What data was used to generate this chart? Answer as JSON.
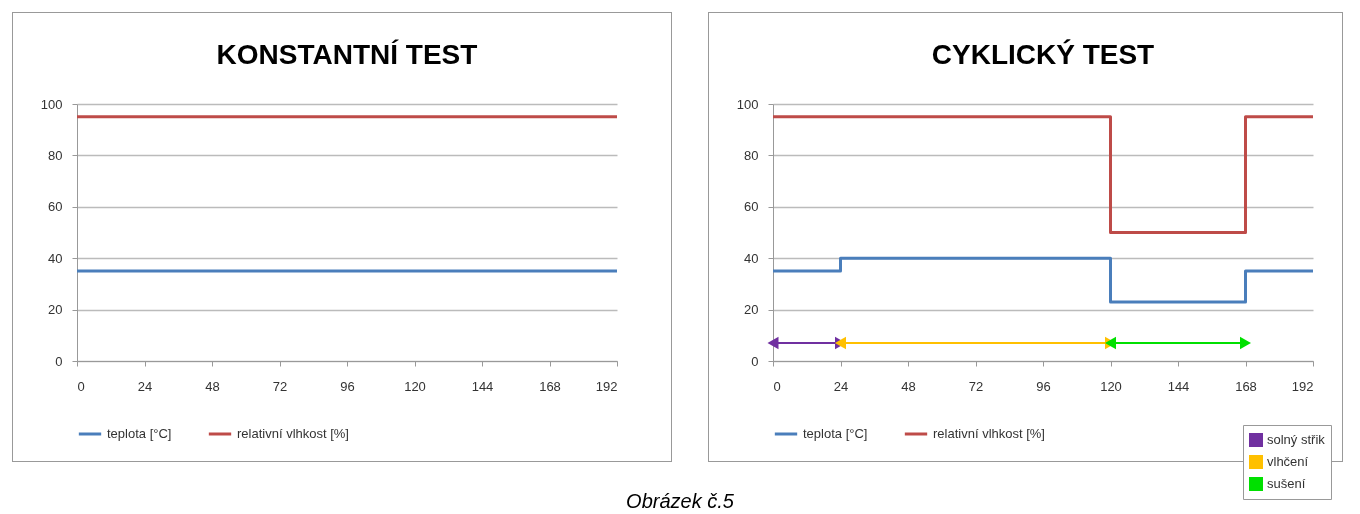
{
  "chart_data": [
    {
      "type": "step",
      "title": "KONSTANTNÍ TEST",
      "xlim": [
        0,
        192
      ],
      "xticks": [
        0,
        24,
        48,
        72,
        96,
        120,
        144,
        168,
        192
      ],
      "ylim": [
        0,
        100
      ],
      "yticks": [
        0,
        20,
        40,
        60,
        80,
        100
      ],
      "grid": "y",
      "legend": "bottom",
      "annotations": [
        "Obrázek č.5"
      ],
      "series": [
        {
          "name": "teplota [°C]",
          "color": "#4a7ebb",
          "x": [
            0,
            192
          ],
          "values": [
            35,
            35
          ]
        },
        {
          "name": "relativní vlhkost [%]",
          "color": "#be4b48",
          "x": [
            0,
            192
          ],
          "values": [
            95,
            95
          ]
        }
      ]
    },
    {
      "type": "step",
      "title": "CYKLICKÝ TEST",
      "xlim": [
        0,
        192
      ],
      "xticks": [
        0,
        24,
        48,
        72,
        96,
        120,
        144,
        168,
        192
      ],
      "ylim": [
        0,
        100
      ],
      "yticks": [
        0,
        20,
        40,
        60,
        80,
        100
      ],
      "grid": "y",
      "legend": "bottom",
      "series": [
        {
          "name": "teplota [°C]",
          "color": "#4a7ebb",
          "x": [
            0,
            24,
            120,
            168,
            192
          ],
          "values": [
            35,
            40,
            23,
            35,
            35
          ]
        },
        {
          "name": "relativní vlhkost [%]",
          "color": "#be4b48",
          "x": [
            0,
            120,
            168,
            192
          ],
          "values": [
            95,
            50,
            95,
            95
          ]
        },
        {
          "name": "solný střik",
          "type": "line",
          "marker": "triangle",
          "color": "#7030a0",
          "x": [
            0,
            24
          ],
          "values": [
            7,
            7
          ]
        },
        {
          "name": "vlhčení",
          "type": "line",
          "marker": "triangle",
          "color": "#ffc000",
          "x": [
            24,
            120
          ],
          "values": [
            7,
            7
          ]
        },
        {
          "name": "sušení",
          "type": "line",
          "marker": "triangle",
          "color": "#00e000",
          "x": [
            120,
            168
          ],
          "values": [
            7,
            7
          ]
        }
      ]
    }
  ]
}
